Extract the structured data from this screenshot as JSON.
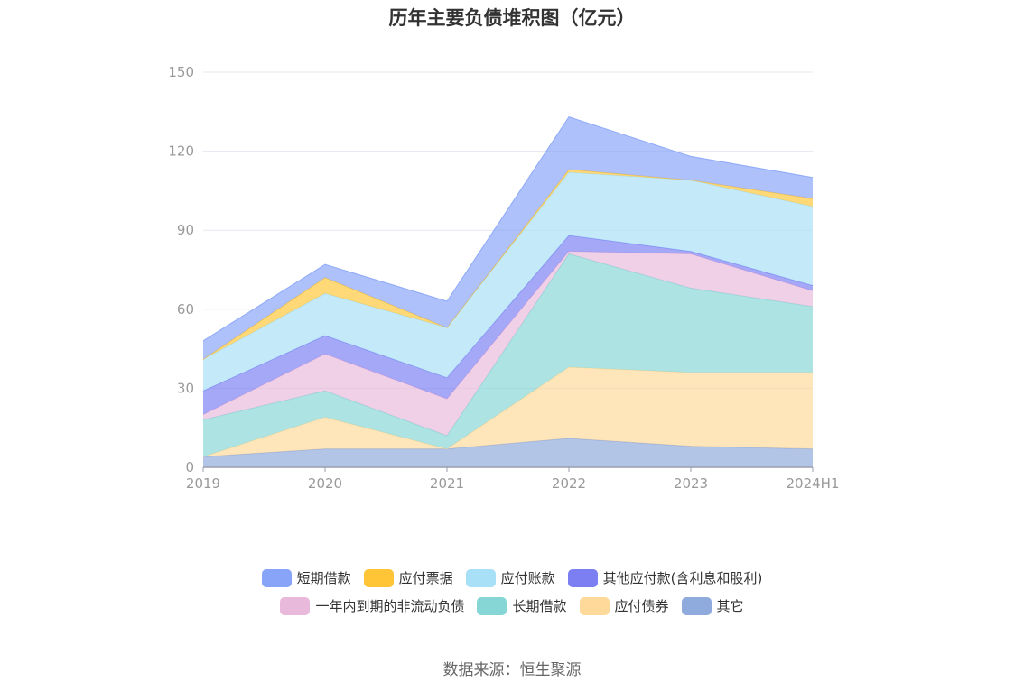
{
  "chart_data": {
    "type": "area",
    "stacked": true,
    "title": "历年主要负债堆积图（亿元）",
    "categories": [
      "2019",
      "2020",
      "2021",
      "2022",
      "2023",
      "2024H1"
    ],
    "y_ticks": [
      "0",
      "30",
      "60",
      "90",
      "120",
      "150"
    ],
    "ylim": [
      0,
      150
    ],
    "grid": true,
    "legend_position": "bottom",
    "series": [
      {
        "name": "其它",
        "color": "#8faadc",
        "values": [
          4,
          7,
          7,
          11,
          8,
          7
        ]
      },
      {
        "name": "应付债券",
        "color": "#ffd99a",
        "values": [
          0,
          12,
          0,
          27,
          28,
          29
        ]
      },
      {
        "name": "长期借款",
        "color": "#86d6d6",
        "values": [
          14,
          10,
          5,
          43,
          32,
          25
        ]
      },
      {
        "name": "一年内到期的非流动负债",
        "color": "#e9b9dc",
        "values": [
          2,
          14,
          14,
          1,
          13,
          6
        ]
      },
      {
        "name": "其他应付款(含利息和股利)",
        "color": "#7b7ff2",
        "values": [
          9,
          7,
          8,
          6,
          1,
          2
        ]
      },
      {
        "name": "应付账款",
        "color": "#a8e0f8",
        "values": [
          12,
          16,
          19,
          24,
          27,
          30
        ]
      },
      {
        "name": "应付票据",
        "color": "#ffc537",
        "values": [
          0,
          6,
          0,
          1,
          0,
          3
        ]
      },
      {
        "name": "短期借款",
        "color": "#87a4f8",
        "values": [
          7,
          5,
          10,
          20,
          9,
          8
        ]
      }
    ],
    "legend_order": [
      [
        "短期借款",
        "应付票据",
        "应付账款",
        "其他应付款(含利息和股利)"
      ],
      [
        "一年内到期的非流动负债",
        "长期借款",
        "应付债券",
        "其它"
      ]
    ]
  },
  "source_note": "数据来源：恒生聚源"
}
